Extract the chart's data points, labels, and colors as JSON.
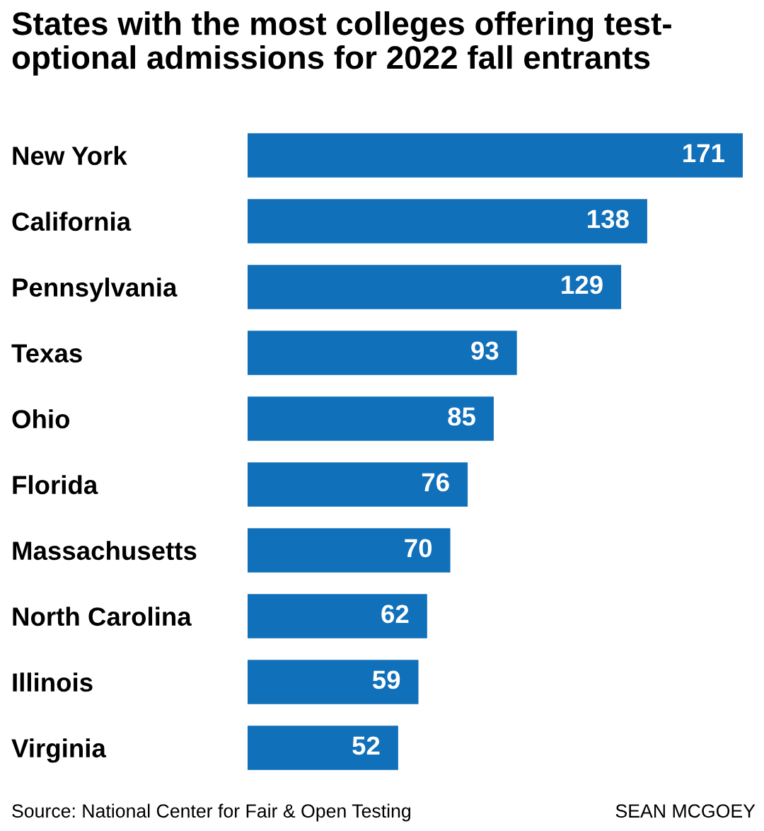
{
  "chart_data": {
    "type": "bar",
    "orientation": "horizontal",
    "title": "States with the most colleges offering test-\noptional admissions for 2022 fall entrants",
    "categories": [
      "New York",
      "California",
      "Pennsylvania",
      "Texas",
      "Ohio",
      "Florida",
      "Massachusetts",
      "North Carolina",
      "Illinois",
      "Virginia"
    ],
    "values": [
      171,
      138,
      129,
      93,
      85,
      76,
      70,
      62,
      59,
      52
    ],
    "color": "#1170ba",
    "data_labels": true,
    "grid": false,
    "tick_labels": "y",
    "annotations": [
      "Source: National Center for Fair & Open Testing",
      "SEAN MCGOEY"
    ]
  }
}
